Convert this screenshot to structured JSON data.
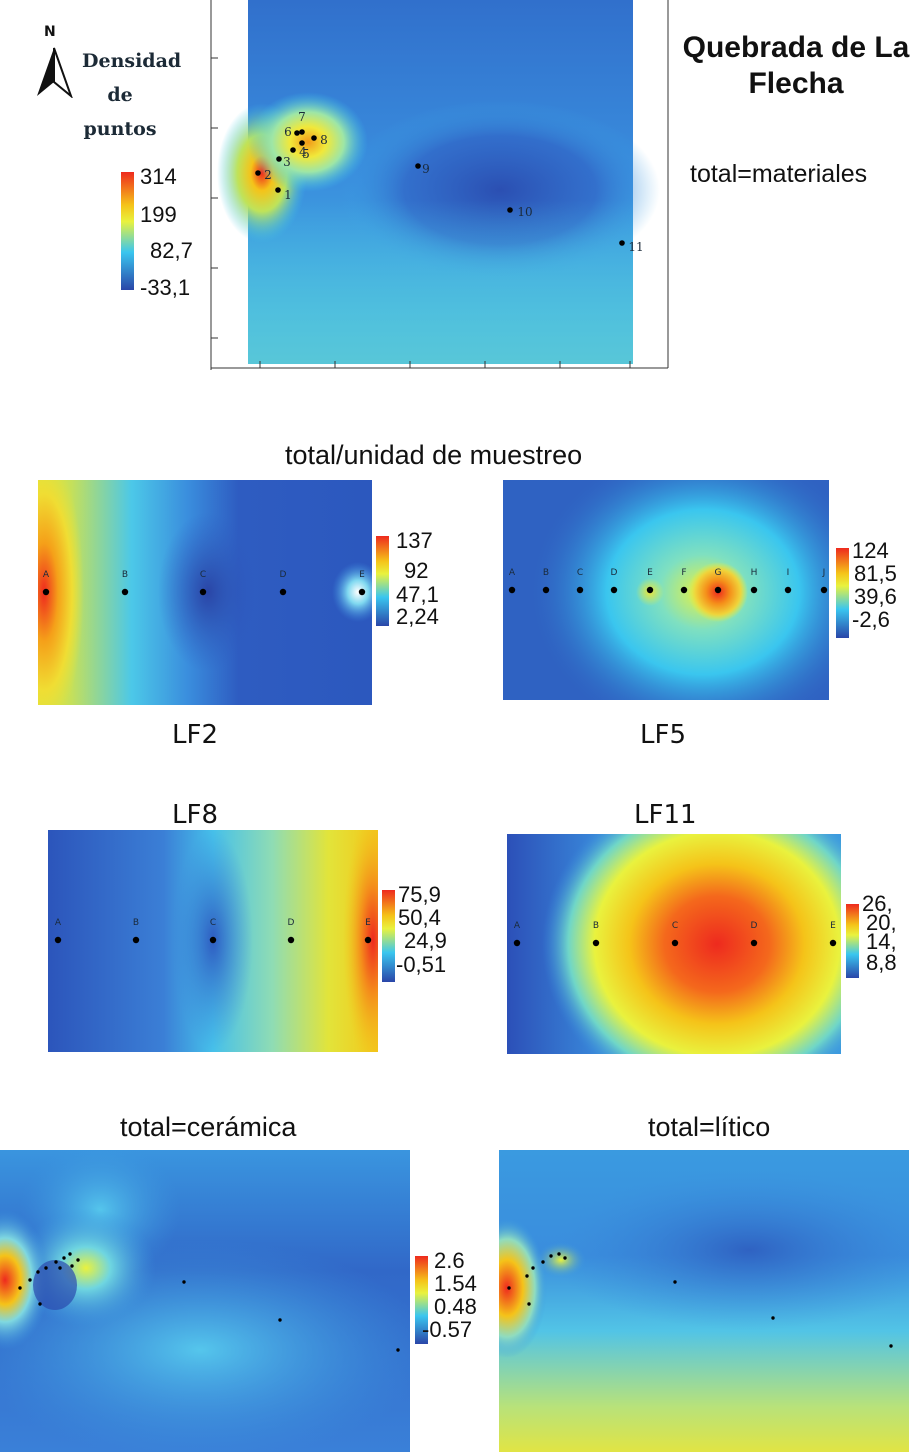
{
  "figure": {
    "title": "Quebrada de La Flecha",
    "subtitle": "total=materiales",
    "section_title": "total/unidad de muestreo",
    "north_label": "N",
    "legend_title": "Densidad de puntos",
    "colors": {
      "high": "#ee2a1e",
      "upper": "#f5c319",
      "mid": "#e9f23e",
      "lower_mid": "#3ac6ef",
      "low": "#2f62c2",
      "lowest": "#2a46a8"
    }
  },
  "chart_data": [
    {
      "type": "heatmap",
      "id": "main",
      "title": "Quebrada de La Flecha",
      "subtitle": "total=materiales",
      "colorbar_ticks": [
        "314",
        "199",
        "82,7",
        "-33,1"
      ],
      "colorbar_range": [
        -33.1,
        314
      ],
      "points": [
        {
          "label": "1",
          "value": "low"
        },
        {
          "label": "2",
          "value": "high"
        },
        {
          "label": "3",
          "value": "low"
        },
        {
          "label": "4",
          "value": "medium"
        },
        {
          "label": "5",
          "value": "high"
        },
        {
          "label": "6",
          "value": "medium"
        },
        {
          "label": "7",
          "value": "medium"
        },
        {
          "label": "8",
          "value": "medium"
        },
        {
          "label": "9",
          "value": "low"
        },
        {
          "label": "10",
          "value": "low"
        },
        {
          "label": "11",
          "value": "low"
        }
      ]
    },
    {
      "type": "heatmap",
      "id": "lf2",
      "label": "LF2",
      "colorbar_ticks": [
        "137",
        "92",
        "47,1",
        "2,24"
      ],
      "colorbar_range": [
        2.24,
        137
      ],
      "points": [
        "A",
        "B",
        "C",
        "D",
        "E"
      ],
      "peak": "A"
    },
    {
      "type": "heatmap",
      "id": "lf5",
      "label": "LF5",
      "colorbar_ticks": [
        "124",
        "81,5",
        "39,6",
        "-2,6"
      ],
      "colorbar_range": [
        -2.6,
        124
      ],
      "points": [
        "A",
        "B",
        "C",
        "D",
        "E",
        "F",
        "G",
        "H",
        "I",
        "J"
      ],
      "peak": "G"
    },
    {
      "type": "heatmap",
      "id": "lf8",
      "label": "LF8",
      "colorbar_ticks": [
        "75,9",
        "50,4",
        "24,9",
        "-0,51"
      ],
      "colorbar_range": [
        -0.51,
        75.9
      ],
      "points": [
        "A",
        "B",
        "C",
        "D",
        "E"
      ],
      "peak": "E"
    },
    {
      "type": "heatmap",
      "id": "lf11",
      "label": "LF11",
      "colorbar_ticks": [
        "26,",
        "20,",
        "14,",
        "8,8"
      ],
      "points": [
        "A",
        "B",
        "C",
        "D",
        "E"
      ],
      "peak": "C-D"
    },
    {
      "type": "heatmap",
      "id": "ceramica",
      "title": "total=cerámica",
      "colorbar_ticks": [
        "2.6",
        "1.54",
        "0.48",
        "-0.57"
      ],
      "colorbar_range": [
        -0.57,
        2.6
      ]
    },
    {
      "type": "heatmap",
      "id": "litico",
      "title": "total=lítico"
    }
  ]
}
